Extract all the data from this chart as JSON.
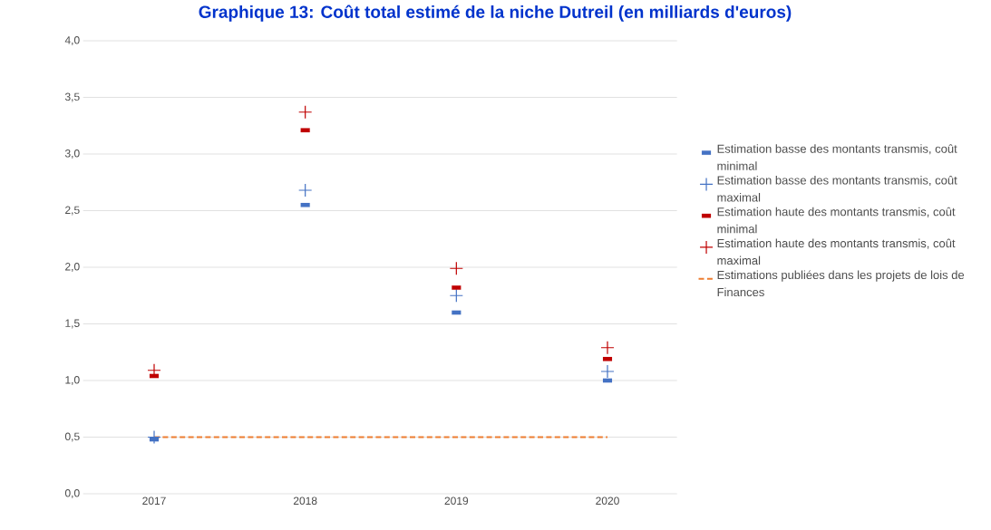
{
  "chart_data": {
    "type": "scatter",
    "title": "Graphique 13: Coût total estimé de la niche Dutreil (en milliards d'euros)",
    "categories": [
      "2017",
      "2018",
      "2019",
      "2020"
    ],
    "series": [
      {
        "name": "Estimation basse des montants transmis, coût minimal",
        "color": "#4472c4",
        "marker": "square",
        "values": [
          0.48,
          2.55,
          1.6,
          1.0
        ]
      },
      {
        "name": "Estimation basse des montants transmis, coût maximal",
        "color": "#4472c4",
        "marker": "cross",
        "values": [
          0.5,
          2.68,
          1.75,
          1.08
        ]
      },
      {
        "name": "Estimation haute des montants transmis, coût minimal",
        "color": "#c00000",
        "marker": "square",
        "values": [
          1.04,
          3.21,
          1.82,
          1.19
        ]
      },
      {
        "name": "Estimation haute des montants transmis, coût maximal",
        "color": "#c00000",
        "marker": "cross",
        "values": [
          1.09,
          3.37,
          1.99,
          1.29
        ]
      },
      {
        "name": "Estimations publiées dans les projets de lois de Finances",
        "type": "line",
        "color": "#ed7d31",
        "marker": "none",
        "line_style": "dashed",
        "values": [
          0.5,
          0.5,
          0.5,
          0.5
        ]
      }
    ],
    "ylim": [
      0,
      4
    ],
    "yticks": [
      {
        "value": 0,
        "label": "0,0"
      },
      {
        "value": 0.5,
        "label": "0,5"
      },
      {
        "value": 1,
        "label": "1,0"
      },
      {
        "value": 1.5,
        "label": "1,5"
      },
      {
        "value": 2,
        "label": "2,0"
      },
      {
        "value": 2.5,
        "label": "2,5"
      },
      {
        "value": 3,
        "label": "3,0"
      },
      {
        "value": 3.5,
        "label": "3,5"
      },
      {
        "value": 4,
        "label": "4,0"
      }
    ],
    "grid": "y",
    "legend": "right"
  }
}
